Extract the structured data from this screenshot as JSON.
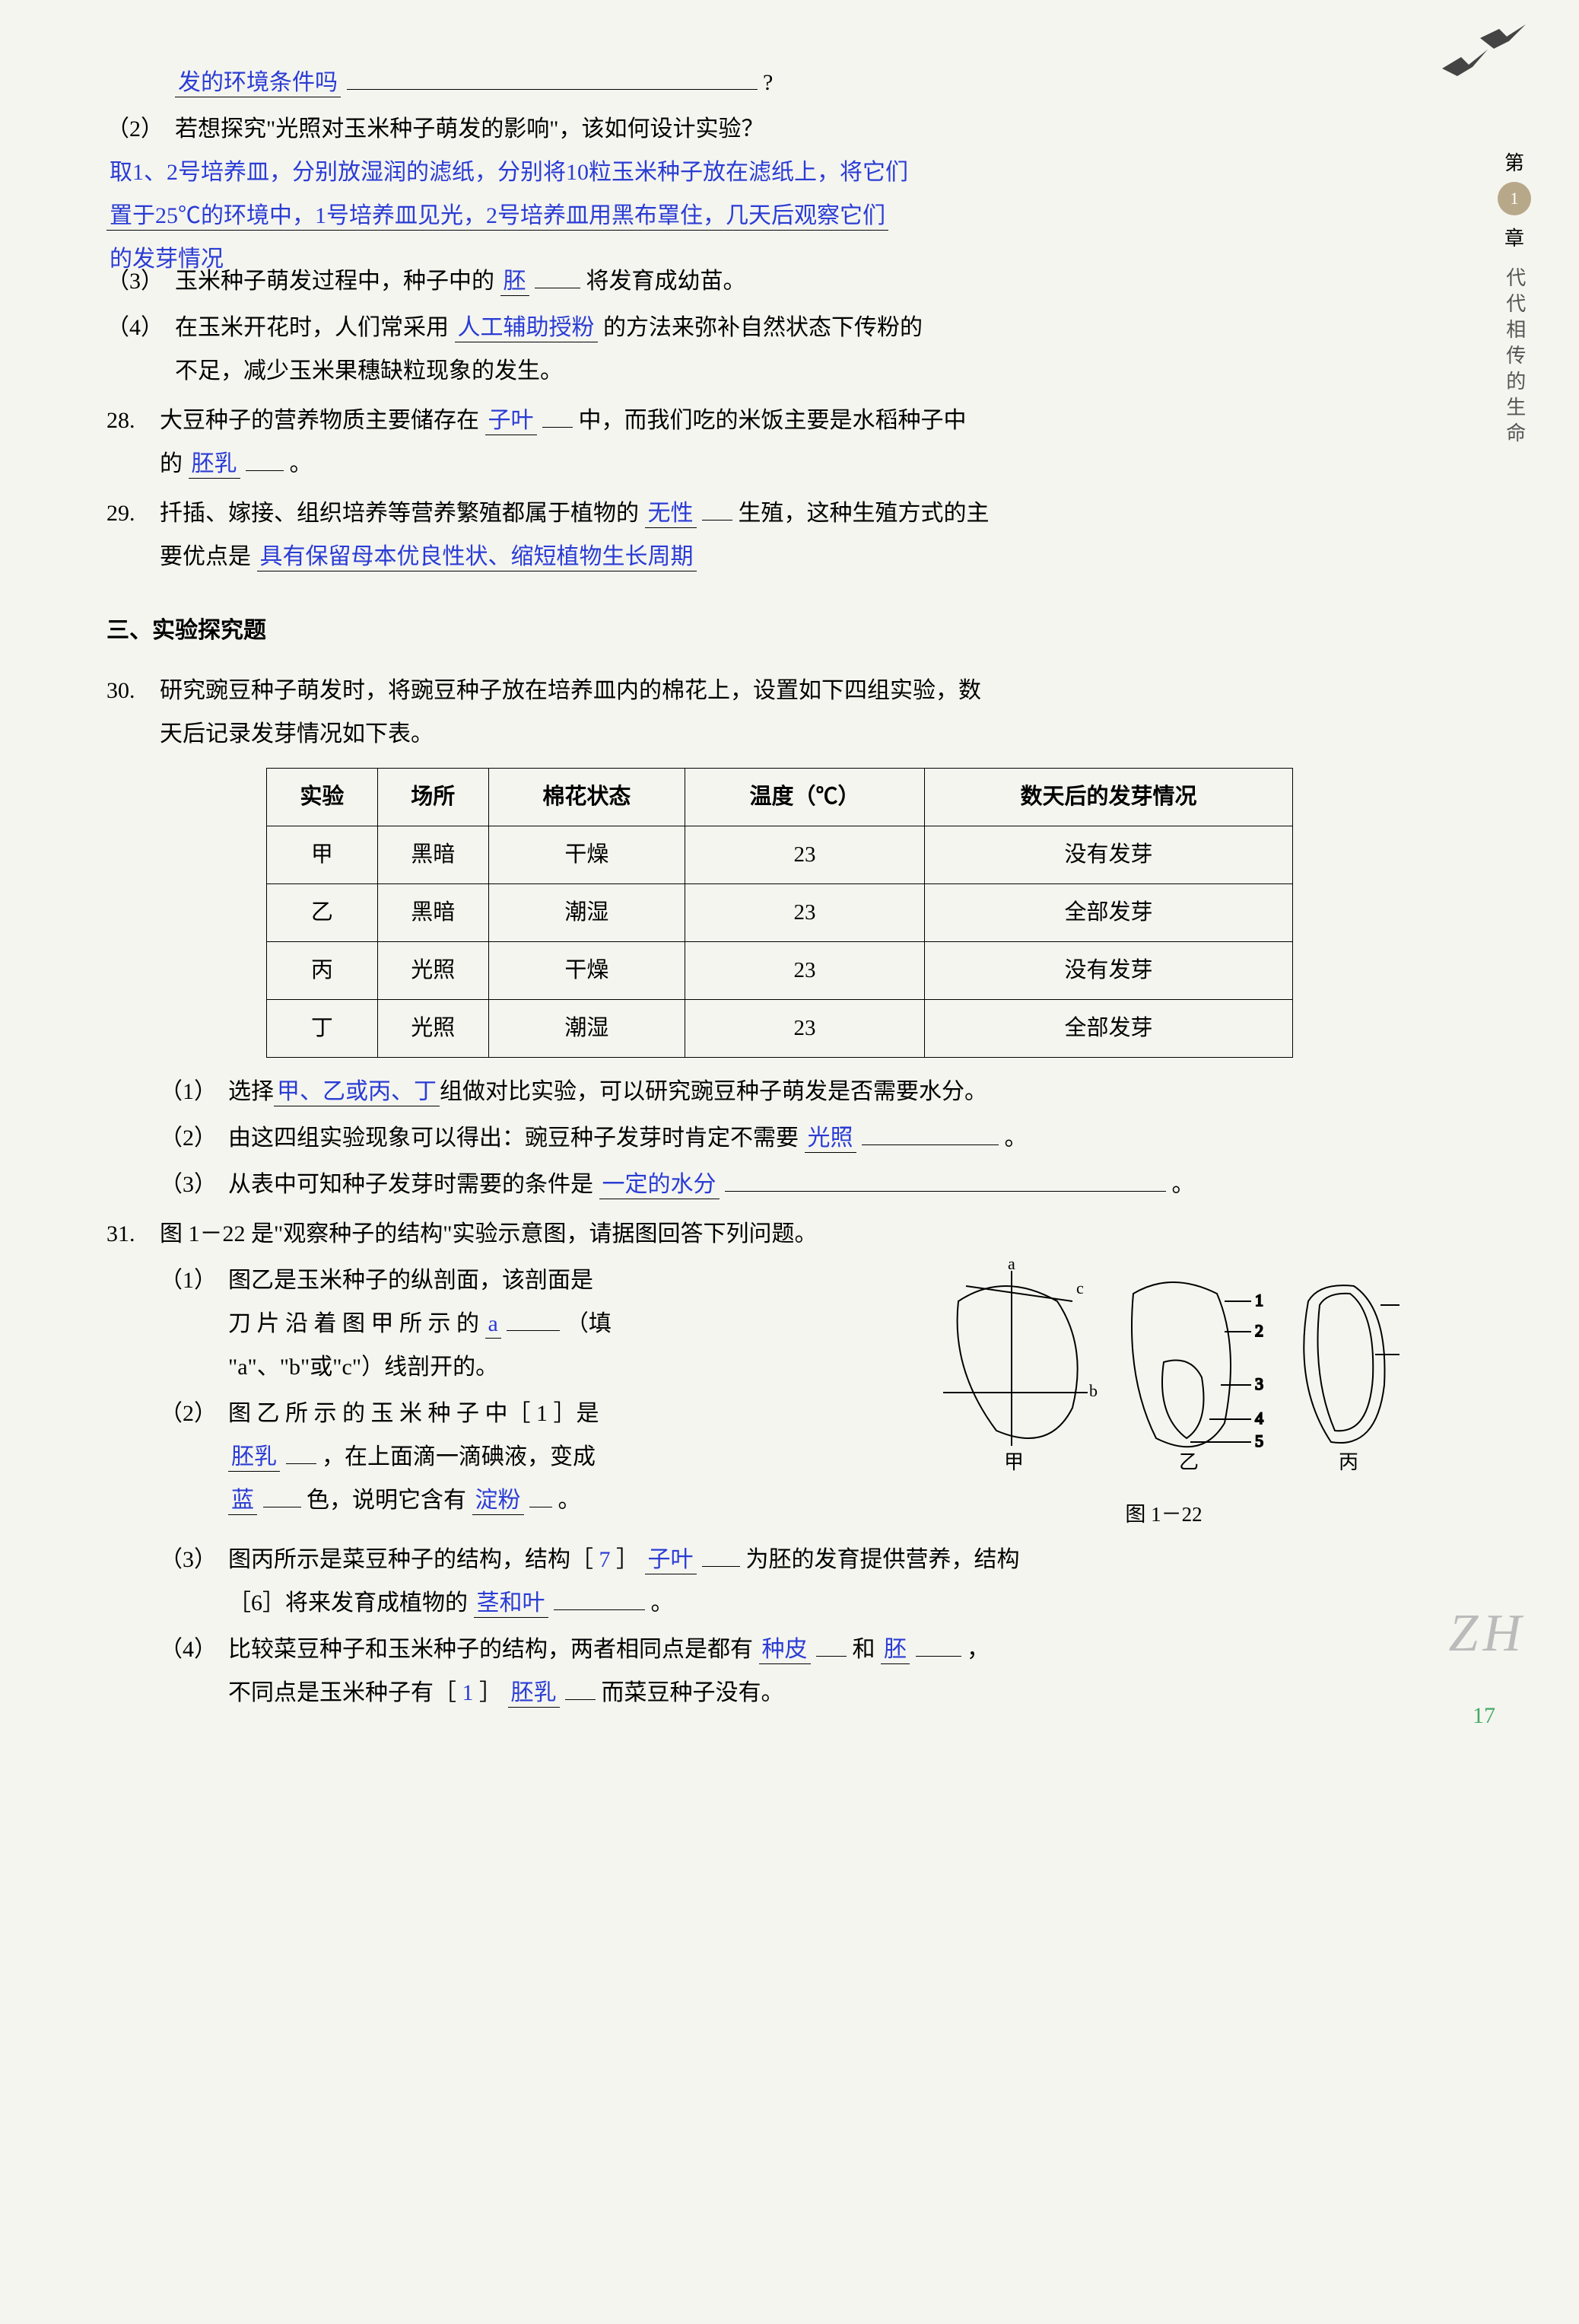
{
  "decor": {
    "birds_svg": "birds"
  },
  "side": {
    "chapter_top": "第",
    "chapter_num": "1",
    "chapter_bottom": "章",
    "vertical": "代代相传的生命"
  },
  "top_continue": {
    "ans1": "发的环境条件吗",
    "punct1": "?",
    "q2_label": "（2）",
    "q2_text": "若想探究\"光照对玉米种子萌发的影响\"，该如何设计实验？",
    "ans2_line1": "取1、2号培养皿，分别放湿润的滤纸，分别将10粒玉米种子放在滤纸上，将它们",
    "ans2_line2": "置于25℃的环境中，1号培养皿见光，2号培养皿用黑布罩住，几天后观察它们",
    "ans2_line3a": "的发芽情况",
    "q3_label": "（3）",
    "q3_pre": "玉米种子萌发过程中，种子中的",
    "q3_ans": "胚",
    "q3_post": "将发育成幼苗。",
    "q4_label": "（4）",
    "q4_pre": "在玉米开花时，人们常采用",
    "q4_ans": "人工辅助授粉",
    "q4_mid": "的方法来弥补自然状态下传粉的",
    "q4_line2": "不足，减少玉米果穗缺粒现象的发生。"
  },
  "q28": {
    "num": "28.",
    "pre": "大豆种子的营养物质主要储存在",
    "ans1": "子叶",
    "mid": "中，而我们吃的米饭主要是水稻种子中",
    "line2_pre": "的",
    "ans2": "胚乳",
    "post": "。"
  },
  "q29": {
    "num": "29.",
    "pre": "扦插、嫁接、组织培养等营养繁殖都属于植物的",
    "ans1": "无性",
    "mid": "生殖，这种生殖方式的主",
    "line2_pre": "要优点是",
    "ans2": "具有保留母本优良性状、缩短植物生长周期"
  },
  "section3": "三、实验探究题",
  "q30": {
    "num": "30.",
    "intro_l1": "研究豌豆种子萌发时，将豌豆种子放在培养皿内的棉花上，设置如下四组实验，数",
    "intro_l2": "天后记录发芽情况如下表。",
    "table": {
      "headers": [
        "实验",
        "场所",
        "棉花状态",
        "温度（℃）",
        "数天后的发芽情况"
      ],
      "rows": [
        [
          "甲",
          "黑暗",
          "干燥",
          "23",
          "没有发芽"
        ],
        [
          "乙",
          "黑暗",
          "潮湿",
          "23",
          "全部发芽"
        ],
        [
          "丙",
          "光照",
          "干燥",
          "23",
          "没有发芽"
        ],
        [
          "丁",
          "光照",
          "潮湿",
          "23",
          "全部发芽"
        ]
      ]
    },
    "s1_label": "（1）",
    "s1_pre": "选择",
    "s1_ans": "甲、乙或丙、丁",
    "s1_post": "组做对比实验，可以研究豌豆种子萌发是否需要水分。",
    "s2_label": "（2）",
    "s2_pre": "由这四组实验现象可以得出：豌豆种子发芽时肯定不需要",
    "s2_ans": "光照",
    "s2_post": "。",
    "s3_label": "（3）",
    "s3_pre": "从表中可知种子发芽时需要的条件是",
    "s3_ans": "一定的水分",
    "s3_post": "。"
  },
  "q31": {
    "num": "31.",
    "intro": "图 1－22 是\"观察种子的结构\"实验示意图，请据图回答下列问题。",
    "s1_label": "（1）",
    "s1_l1a": "图乙是玉米种子的纵剖面，该剖面是",
    "s1_l2a": "刀 片 沿 着 图 甲 所 示 的",
    "s1_ans1": "a",
    "s1_l2b": "（填",
    "s1_l3": "\"a\"、\"b\"或\"c\"）线剖开的。",
    "s2_label": "（2）",
    "s2_l1": "图 乙 所 示 的 玉 米 种 子 中［ 1 ］是",
    "s2_ans1": "胚乳",
    "s2_mid1": "，在上面滴一滴碘液，变成",
    "s2_ans2": "蓝",
    "s2_mid2": "色，说明它含有",
    "s2_ans3": "淀粉",
    "s2_post": "。",
    "fig_labels": {
      "jia": "甲",
      "yi": "乙",
      "bing": "丙",
      "caption": "图 1－22"
    },
    "s3_label": "（3）",
    "s3_pre": "图丙所示是菜豆种子的结构，结构［",
    "s3_num": "7",
    "s3_mid1": "］",
    "s3_ans1": "子叶",
    "s3_mid2": "为胚的发育提供营养，结构",
    "s3_l2_pre": "［6］将来发育成植物的",
    "s3_ans2": "茎和叶",
    "s3_l2_post": "。",
    "s4_label": "（4）",
    "s4_pre": "比较菜豆种子和玉米种子的结构，两者相同点是都有",
    "s4_ans1": "种皮",
    "s4_mid1": "和",
    "s4_ans2": "胚",
    "s4_post1": "，",
    "s4_l2_pre": "不同点是玉米种子有［",
    "s4_num": "1",
    "s4_l2_mid": "］",
    "s4_ans3": "胚乳",
    "s4_l2_post": "而菜豆种子没有。"
  },
  "footer": {
    "zh": "ZH",
    "page": "17"
  }
}
